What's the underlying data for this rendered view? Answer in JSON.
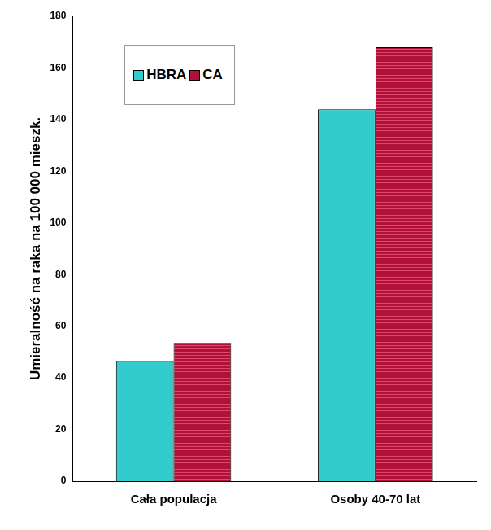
{
  "chart_data": {
    "type": "bar",
    "y_label": "Umieralność na raka na 100 000 mieszk.",
    "categories": [
      "Cała populacja",
      "Osoby 40-70 lat"
    ],
    "series": [
      {
        "name": "HBRA",
        "color": "#33cccc",
        "values": [
          46.5,
          144
        ]
      },
      {
        "name": "CA",
        "color": "#b0103a",
        "values": [
          53.5,
          168
        ]
      }
    ],
    "ylim": [
      0,
      180
    ],
    "yticks": [
      0,
      20,
      40,
      60,
      80,
      100,
      120,
      140,
      160,
      180
    ],
    "grid": false,
    "legend": "upper left"
  }
}
